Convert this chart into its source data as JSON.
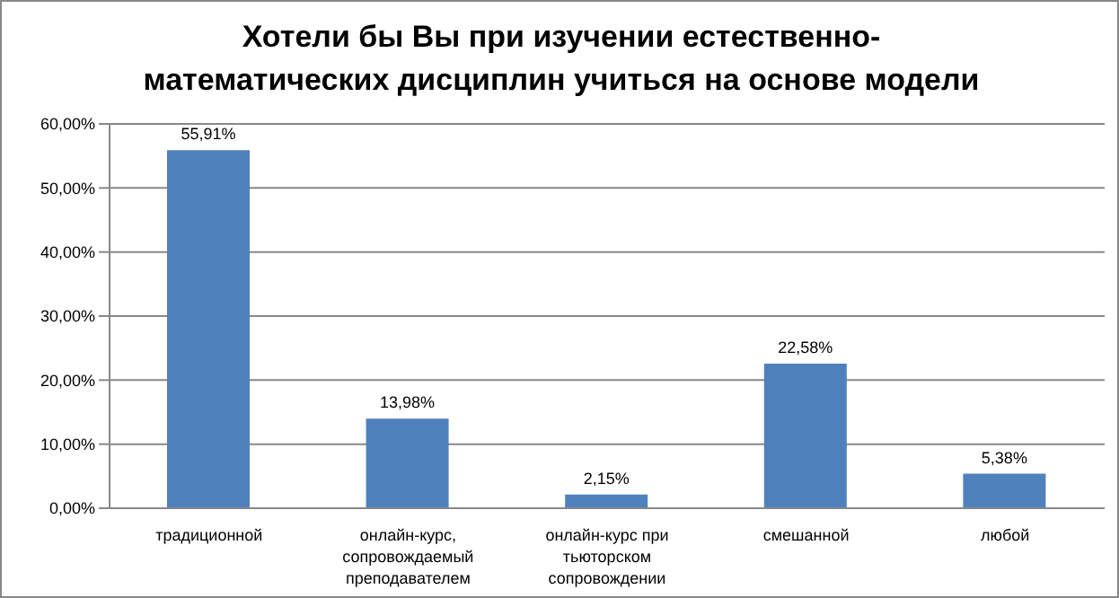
{
  "chart_data": {
    "type": "bar",
    "title": "Хотели бы Вы при изучении естественно-математических дисциплин учиться на основе модели",
    "categories": [
      "традиционной",
      "онлайн-курс, сопровождаемый преподавателем",
      "онлайн-курс при тьюторском сопровождении",
      "смешанной",
      "любой"
    ],
    "values": [
      55.91,
      13.98,
      2.15,
      22.58,
      5.38
    ],
    "value_labels": [
      "55,91%",
      "13,98%",
      "2,15%",
      "22,58%",
      "5,38%"
    ],
    "color": "#4f81bd",
    "ylim": [
      0,
      60
    ],
    "yticks": [
      {
        "value": 0,
        "label": "0,00%"
      },
      {
        "value": 10,
        "label": "10,00%"
      },
      {
        "value": 20,
        "label": "20,00%"
      },
      {
        "value": 30,
        "label": "30,00%"
      },
      {
        "value": 40,
        "label": "40,00%"
      },
      {
        "value": 50,
        "label": "50,00%"
      },
      {
        "value": 60,
        "label": "60,00%"
      }
    ],
    "grid": "y"
  }
}
